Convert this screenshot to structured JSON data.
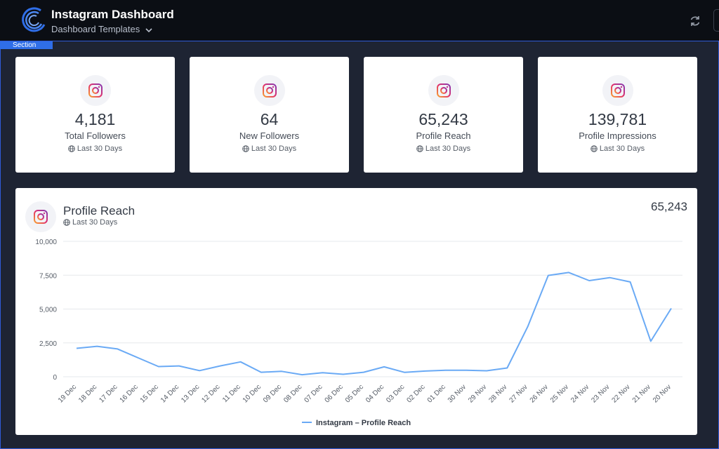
{
  "header": {
    "title": "Instagram Dashboard",
    "subtitle": "Dashboard Templates"
  },
  "section_label": "Section",
  "kpis": [
    {
      "value": "4,181",
      "label": "Total Followers",
      "period": "Last 30 Days"
    },
    {
      "value": "64",
      "label": "New Followers",
      "period": "Last 30 Days"
    },
    {
      "value": "65,243",
      "label": "Profile Reach",
      "period": "Last 30 Days"
    },
    {
      "value": "139,781",
      "label": "Profile Impressions",
      "period": "Last 30 Days"
    }
  ],
  "chart_panel": {
    "title": "Profile Reach",
    "period": "Last 30 Days",
    "total": "65,243"
  },
  "colors": {
    "line": "#6aaaf5",
    "accent": "#2f6ee8",
    "background": "#1e2433"
  },
  "chart_data": {
    "type": "line",
    "x": [
      "19 Dec",
      "18 Dec",
      "17 Dec",
      "16 Dec",
      "15 Dec",
      "14 Dec",
      "13 Dec",
      "12 Dec",
      "11 Dec",
      "10 Dec",
      "09 Dec",
      "08 Dec",
      "07 Dec",
      "06 Dec",
      "05 Dec",
      "04 Dec",
      "03 Dec",
      "02 Dec",
      "01 Dec",
      "30 Nov",
      "29 Nov",
      "28 Nov",
      "27 Nov",
      "26 Nov",
      "25 Nov",
      "24 Nov",
      "23 Nov",
      "22 Nov",
      "21 Nov",
      "20 Nov"
    ],
    "series": [
      {
        "name": "Instagram – Profile Reach",
        "values": [
          2100,
          2250,
          2050,
          1400,
          750,
          800,
          450,
          800,
          1100,
          330,
          400,
          150,
          300,
          180,
          330,
          730,
          320,
          420,
          480,
          480,
          440,
          650,
          3700,
          7480,
          7700,
          7100,
          7320,
          7000,
          2620,
          5050
        ]
      }
    ],
    "ylim": [
      0,
      10000
    ],
    "yticks": [
      "0",
      "2,500",
      "5,000",
      "7,500",
      "10,000"
    ],
    "ytick_values": [
      0,
      2500,
      5000,
      7500,
      10000
    ],
    "grid": true,
    "legend": "bottom"
  }
}
